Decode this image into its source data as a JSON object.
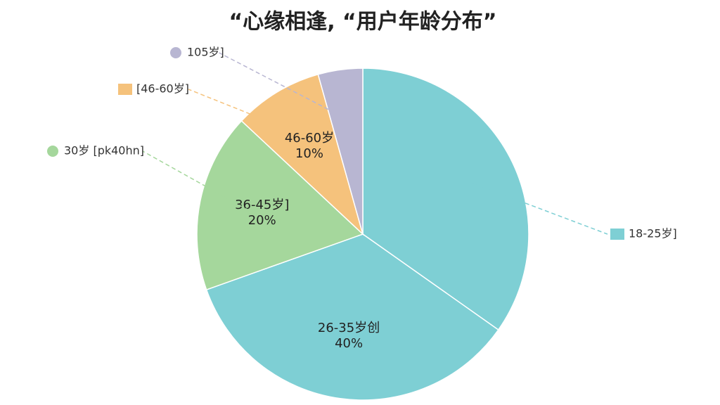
{
  "chart_data": {
    "type": "pie",
    "title": "“心缘相逢, “用户年龄分布”",
    "categories": [
      "18-25岁]",
      null,
      "30岁 [pk40hn]",
      "[46-60岁]",
      "105岁]"
    ],
    "inner_labels": [
      null,
      "26-35岁创",
      "36-45岁]",
      "46-60岁",
      null
    ],
    "values": [
      40,
      40,
      20,
      10,
      5
    ],
    "value_labels": [
      null,
      "40%",
      "20%",
      "10%",
      null
    ],
    "colors": [
      "#7ecfd4",
      "#7ecfd4",
      "#a5d79c",
      "#f5c27c",
      "#b8b6d2"
    ]
  }
}
